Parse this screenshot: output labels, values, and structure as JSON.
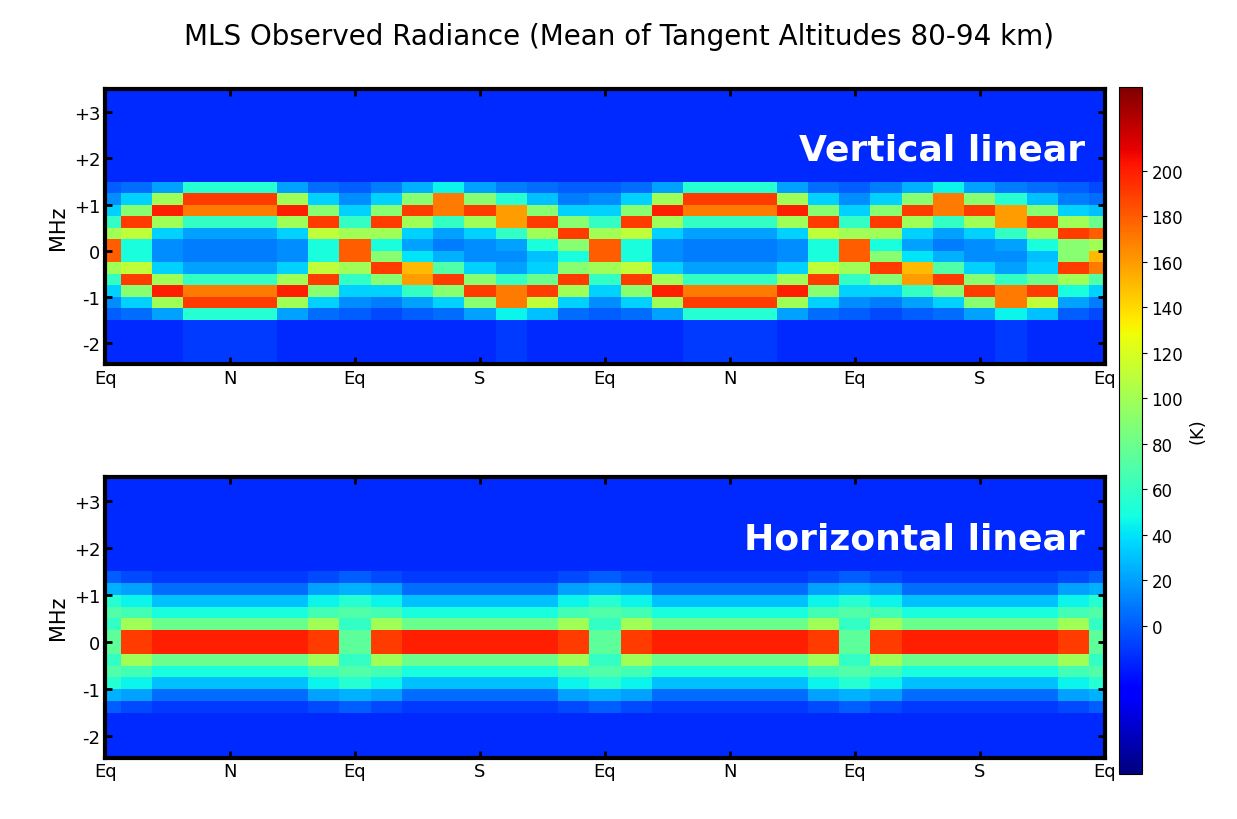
{
  "chart_data": [
    {
      "type": "heatmap",
      "title": "MLS Observed Radiance (Mean of Tangent Altitudes 80-94 km)",
      "annotation": "Vertical linear",
      "y_label": "MHz",
      "xlim": [
        0,
        8
      ],
      "xticks": [
        {
          "value": 0,
          "label": "Eq"
        },
        {
          "value": 1,
          "label": "N"
        },
        {
          "value": 2,
          "label": "Eq"
        },
        {
          "value": 3,
          "label": "S"
        },
        {
          "value": 4,
          "label": "Eq"
        },
        {
          "value": 5,
          "label": "N"
        },
        {
          "value": 6,
          "label": "Eq"
        },
        {
          "value": 7,
          "label": "S"
        },
        {
          "value": 8,
          "label": "Eq"
        }
      ],
      "ylim": [
        -2.45,
        3.5
      ],
      "yticks": [
        -2,
        -1,
        0,
        {
          "value": 1,
          "label": "+1"
        },
        {
          "value": 2,
          "label": "+2"
        },
        {
          "value": 3,
          "label": "+3"
        }
      ],
      "colorbar_range": [
        -65,
        237
      ],
      "colorbar_ticks": [
        0,
        20,
        40,
        60,
        80,
        100,
        120,
        140,
        160,
        180,
        200
      ],
      "colorbar_label": "(K)",
      "x_edges": [
        -0.125,
        0.125,
        0.375,
        0.625,
        0.875,
        1.125,
        1.375,
        1.625,
        1.875,
        2.125,
        2.375,
        2.625,
        2.875,
        3.125,
        3.375,
        3.625,
        3.875,
        4.125,
        4.375,
        4.625,
        4.875,
        5.125,
        5.375,
        5.625,
        5.875,
        6.125,
        6.375,
        6.625,
        6.875,
        7.125,
        7.375,
        7.625,
        7.875,
        8.125
      ],
      "y_edges": [
        -2.5,
        -1.5,
        -1.25,
        -1.0,
        -0.75,
        -0.5,
        -0.25,
        0,
        0.25,
        0.5,
        0.75,
        1.0,
        1.25,
        1.5,
        3.5
      ],
      "cells": [
        [
          -15,
          0,
          15,
          35,
          60,
          100,
          180,
          180,
          100,
          60,
          35,
          15,
          0,
          -15
        ],
        [
          -15,
          5,
          35,
          90,
          190,
          110,
          50,
          50,
          110,
          190,
          90,
          35,
          5,
          -15
        ],
        [
          -15,
          20,
          100,
          200,
          100,
          35,
          15,
          15,
          35,
          100,
          200,
          100,
          20,
          -15
        ],
        [
          -10,
          55,
          190,
          170,
          60,
          20,
          10,
          10,
          20,
          60,
          170,
          190,
          55,
          -15
        ],
        [
          -10,
          55,
          190,
          170,
          60,
          20,
          10,
          10,
          20,
          60,
          170,
          190,
          55,
          -15
        ],
        [
          -10,
          55,
          190,
          170,
          60,
          20,
          10,
          10,
          20,
          60,
          170,
          190,
          55,
          -15
        ],
        [
          -15,
          20,
          100,
          200,
          100,
          35,
          15,
          15,
          35,
          100,
          200,
          100,
          20,
          -15
        ],
        [
          -15,
          5,
          35,
          90,
          190,
          110,
          50,
          50,
          110,
          190,
          90,
          35,
          5,
          -15
        ],
        [
          -15,
          0,
          15,
          35,
          60,
          100,
          180,
          180,
          100,
          60,
          35,
          15,
          0,
          -15
        ],
        [
          -15,
          -5,
          10,
          35,
          90,
          190,
          90,
          50,
          100,
          190,
          90,
          35,
          10,
          -15
        ],
        [
          -15,
          0,
          20,
          60,
          160,
          150,
          40,
          20,
          35,
          100,
          190,
          90,
          25,
          -15
        ],
        [
          -15,
          5,
          35,
          90,
          190,
          70,
          25,
          10,
          20,
          60,
          170,
          170,
          45,
          -15
        ],
        [
          -15,
          20,
          90,
          190,
          90,
          35,
          15,
          15,
          35,
          100,
          190,
          90,
          20,
          -15
        ],
        [
          -10,
          45,
          170,
          170,
          60,
          20,
          15,
          20,
          60,
          160,
          160,
          55,
          10,
          -15
        ],
        [
          -15,
          30,
          110,
          190,
          80,
          35,
          30,
          50,
          100,
          190,
          90,
          30,
          5,
          -15
        ],
        [
          -15,
          5,
          35,
          100,
          190,
          90,
          50,
          90,
          190,
          90,
          35,
          10,
          0,
          -15
        ],
        [
          -15,
          0,
          15,
          35,
          60,
          100,
          180,
          180,
          100,
          60,
          35,
          15,
          0,
          -15
        ],
        [
          -15,
          5,
          35,
          90,
          190,
          110,
          50,
          50,
          110,
          190,
          90,
          35,
          5,
          -15
        ],
        [
          -15,
          20,
          100,
          200,
          100,
          35,
          15,
          15,
          35,
          100,
          200,
          100,
          20,
          -15
        ],
        [
          -10,
          55,
          190,
          170,
          60,
          20,
          10,
          10,
          20,
          60,
          170,
          190,
          55,
          -15
        ],
        [
          -10,
          55,
          190,
          170,
          60,
          20,
          10,
          10,
          20,
          60,
          170,
          190,
          55,
          -15
        ],
        [
          -10,
          55,
          190,
          170,
          60,
          20,
          10,
          10,
          20,
          60,
          170,
          190,
          55,
          -15
        ],
        [
          -15,
          20,
          100,
          200,
          100,
          35,
          15,
          15,
          35,
          100,
          200,
          100,
          20,
          -15
        ],
        [
          -15,
          5,
          35,
          90,
          190,
          110,
          50,
          50,
          110,
          190,
          90,
          35,
          5,
          -15
        ],
        [
          -15,
          0,
          15,
          35,
          60,
          100,
          180,
          180,
          100,
          60,
          35,
          15,
          0,
          -15
        ],
        [
          -15,
          -5,
          10,
          35,
          90,
          190,
          90,
          50,
          100,
          190,
          90,
          35,
          10,
          -15
        ],
        [
          -15,
          0,
          20,
          60,
          160,
          150,
          40,
          20,
          35,
          100,
          190,
          90,
          25,
          -15
        ],
        [
          -15,
          5,
          35,
          90,
          190,
          70,
          25,
          10,
          20,
          60,
          170,
          170,
          45,
          -15
        ],
        [
          -15,
          20,
          90,
          190,
          90,
          35,
          15,
          15,
          35,
          100,
          190,
          90,
          20,
          -15
        ],
        [
          -10,
          45,
          170,
          170,
          60,
          20,
          15,
          20,
          60,
          160,
          160,
          55,
          10,
          -15
        ],
        [
          -15,
          30,
          110,
          190,
          80,
          35,
          30,
          50,
          100,
          190,
          90,
          30,
          5,
          -15
        ],
        [
          -15,
          0,
          20,
          50,
          100,
          190,
          90,
          90,
          190,
          100,
          35,
          10,
          0,
          -15
        ],
        [
          -15,
          -5,
          10,
          35,
          70,
          170,
          150,
          100,
          180,
          80,
          30,
          5,
          -5,
          -15
        ]
      ]
    },
    {
      "type": "heatmap",
      "annotation": "Horizontal linear",
      "y_label": "MHz",
      "xlim": [
        0,
        8
      ],
      "xticks": [
        {
          "value": 0,
          "label": "Eq"
        },
        {
          "value": 1,
          "label": "N"
        },
        {
          "value": 2,
          "label": "Eq"
        },
        {
          "value": 3,
          "label": "S"
        },
        {
          "value": 4,
          "label": "Eq"
        },
        {
          "value": 5,
          "label": "N"
        },
        {
          "value": 6,
          "label": "Eq"
        },
        {
          "value": 7,
          "label": "S"
        },
        {
          "value": 8,
          "label": "Eq"
        }
      ],
      "ylim": [
        -2.45,
        3.5
      ],
      "yticks": [
        -2,
        -1,
        0,
        {
          "value": 1,
          "label": "+1"
        },
        {
          "value": 2,
          "label": "+2"
        },
        {
          "value": 3,
          "label": "+3"
        }
      ],
      "x_edges": [
        -0.125,
        0.125,
        0.375,
        0.625,
        0.875,
        1.125,
        1.375,
        1.625,
        1.875,
        2.125,
        2.375,
        2.625,
        2.875,
        3.125,
        3.375,
        3.625,
        3.875,
        4.125,
        4.375,
        4.625,
        4.875,
        5.125,
        5.375,
        5.625,
        5.875,
        6.125,
        6.375,
        6.625,
        6.875,
        7.125,
        7.375,
        7.625,
        7.875,
        8.125
      ],
      "y_edges": [
        -2.5,
        -1.5,
        -1.25,
        -1.0,
        -0.75,
        -0.5,
        -0.25,
        0,
        0.25,
        0.5,
        0.75,
        1.0,
        1.25,
        1.5,
        3.5
      ],
      "cells": [
        [
          -15,
          0,
          25,
          55,
          70,
          60,
          75,
          75,
          60,
          70,
          55,
          25,
          0,
          -15
        ],
        [
          -15,
          -5,
          20,
          45,
          65,
          100,
          190,
          190,
          100,
          65,
          45,
          20,
          -5,
          -15
        ],
        [
          -15,
          -10,
          5,
          30,
          50,
          80,
          200,
          200,
          80,
          50,
          30,
          5,
          -10,
          -15
        ],
        [
          -15,
          -10,
          5,
          30,
          50,
          80,
          200,
          200,
          80,
          50,
          30,
          5,
          -10,
          -15
        ],
        [
          -15,
          -10,
          5,
          30,
          50,
          80,
          200,
          200,
          80,
          50,
          30,
          5,
          -10,
          -15
        ],
        [
          -15,
          -10,
          5,
          30,
          50,
          80,
          200,
          200,
          80,
          50,
          30,
          5,
          -10,
          -15
        ],
        [
          -15,
          -10,
          5,
          30,
          50,
          80,
          200,
          200,
          80,
          50,
          30,
          5,
          -10,
          -15
        ],
        [
          -15,
          -5,
          20,
          45,
          65,
          100,
          190,
          190,
          100,
          65,
          45,
          20,
          -5,
          -15
        ],
        [
          -15,
          0,
          25,
          55,
          70,
          60,
          75,
          75,
          60,
          70,
          55,
          25,
          0,
          -15
        ],
        [
          -15,
          -5,
          20,
          45,
          65,
          100,
          190,
          190,
          100,
          65,
          45,
          20,
          -5,
          -15
        ],
        [
          -15,
          -10,
          5,
          30,
          50,
          80,
          200,
          200,
          80,
          50,
          30,
          5,
          -10,
          -15
        ],
        [
          -15,
          -10,
          5,
          30,
          50,
          80,
          200,
          200,
          80,
          50,
          30,
          5,
          -10,
          -15
        ],
        [
          -15,
          -10,
          5,
          30,
          50,
          80,
          200,
          200,
          80,
          50,
          30,
          5,
          -10,
          -15
        ],
        [
          -15,
          -10,
          5,
          30,
          50,
          80,
          200,
          200,
          80,
          50,
          30,
          5,
          -10,
          -15
        ],
        [
          -15,
          -10,
          5,
          30,
          50,
          80,
          200,
          200,
          80,
          50,
          30,
          5,
          -10,
          -15
        ],
        [
          -15,
          -5,
          20,
          45,
          65,
          100,
          190,
          190,
          100,
          65,
          45,
          20,
          -5,
          -15
        ],
        [
          -15,
          0,
          25,
          55,
          70,
          60,
          75,
          75,
          60,
          70,
          55,
          25,
          0,
          -15
        ],
        [
          -15,
          -5,
          20,
          45,
          65,
          100,
          190,
          190,
          100,
          65,
          45,
          20,
          -5,
          -15
        ],
        [
          -15,
          -10,
          5,
          30,
          50,
          80,
          200,
          200,
          80,
          50,
          30,
          5,
          -10,
          -15
        ],
        [
          -15,
          -10,
          5,
          30,
          50,
          80,
          200,
          200,
          80,
          50,
          30,
          5,
          -10,
          -15
        ],
        [
          -15,
          -10,
          5,
          30,
          50,
          80,
          200,
          200,
          80,
          50,
          30,
          5,
          -10,
          -15
        ],
        [
          -15,
          -10,
          5,
          30,
          50,
          80,
          200,
          200,
          80,
          50,
          30,
          5,
          -10,
          -15
        ],
        [
          -15,
          -10,
          5,
          30,
          50,
          80,
          200,
          200,
          80,
          50,
          30,
          5,
          -10,
          -15
        ],
        [
          -15,
          -5,
          20,
          45,
          65,
          100,
          190,
          190,
          100,
          65,
          45,
          20,
          -5,
          -15
        ],
        [
          -15,
          0,
          25,
          55,
          70,
          60,
          75,
          75,
          60,
          70,
          55,
          25,
          0,
          -15
        ],
        [
          -15,
          -5,
          20,
          45,
          65,
          100,
          190,
          190,
          100,
          65,
          45,
          20,
          -5,
          -15
        ],
        [
          -15,
          -10,
          5,
          30,
          50,
          80,
          200,
          200,
          80,
          50,
          30,
          5,
          -10,
          -15
        ],
        [
          -15,
          -10,
          5,
          30,
          50,
          80,
          200,
          200,
          80,
          50,
          30,
          5,
          -10,
          -15
        ],
        [
          -15,
          -10,
          5,
          30,
          50,
          80,
          200,
          200,
          80,
          50,
          30,
          5,
          -10,
          -15
        ],
        [
          -15,
          -10,
          5,
          30,
          50,
          80,
          200,
          200,
          80,
          50,
          30,
          5,
          -10,
          -15
        ],
        [
          -15,
          -10,
          5,
          30,
          50,
          80,
          200,
          200,
          80,
          50,
          30,
          5,
          -10,
          -15
        ],
        [
          -15,
          -5,
          20,
          45,
          65,
          100,
          190,
          190,
          100,
          65,
          45,
          20,
          -5,
          -15
        ],
        [
          -15,
          0,
          25,
          55,
          70,
          60,
          75,
          75,
          60,
          70,
          55,
          25,
          0,
          -15
        ]
      ]
    }
  ]
}
